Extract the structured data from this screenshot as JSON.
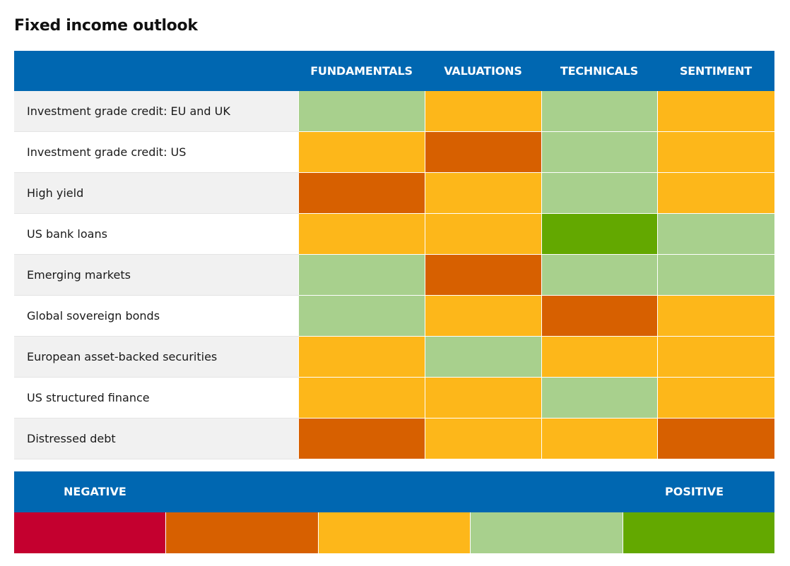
{
  "title": "Fixed income outlook",
  "colors": {
    "header": "#0067b1",
    "scale": [
      "#c4002f",
      "#d76000",
      "#fdb71a",
      "#a8d08d",
      "#63a800"
    ]
  },
  "chart_data": {
    "type": "heatmap",
    "title": "Fixed income outlook",
    "columns": [
      "FUNDAMENTALS",
      "VALUATIONS",
      "TECHNICALS",
      "SENTIMENT"
    ],
    "scale_min": 1,
    "scale_max": 5,
    "rows": [
      {
        "label": "Investment grade credit: EU and UK",
        "values": [
          4,
          3,
          4,
          3
        ]
      },
      {
        "label": "Investment grade credit: US",
        "values": [
          3,
          2,
          4,
          3
        ]
      },
      {
        "label": "High yield",
        "values": [
          2,
          3,
          4,
          3
        ]
      },
      {
        "label": "US bank loans",
        "values": [
          3,
          3,
          5,
          4
        ]
      },
      {
        "label": "Emerging markets",
        "values": [
          4,
          2,
          4,
          4
        ]
      },
      {
        "label": "Global sovereign bonds",
        "values": [
          4,
          3,
          2,
          3
        ]
      },
      {
        "label": "European asset-backed securities",
        "values": [
          3,
          4,
          3,
          3
        ]
      },
      {
        "label": "US structured finance",
        "values": [
          3,
          3,
          4,
          3
        ]
      },
      {
        "label": "Distressed debt",
        "values": [
          2,
          3,
          3,
          2
        ]
      }
    ],
    "legend": {
      "low_label": "NEGATIVE",
      "high_label": "POSITIVE",
      "levels": [
        1,
        2,
        3,
        4,
        5
      ]
    }
  }
}
